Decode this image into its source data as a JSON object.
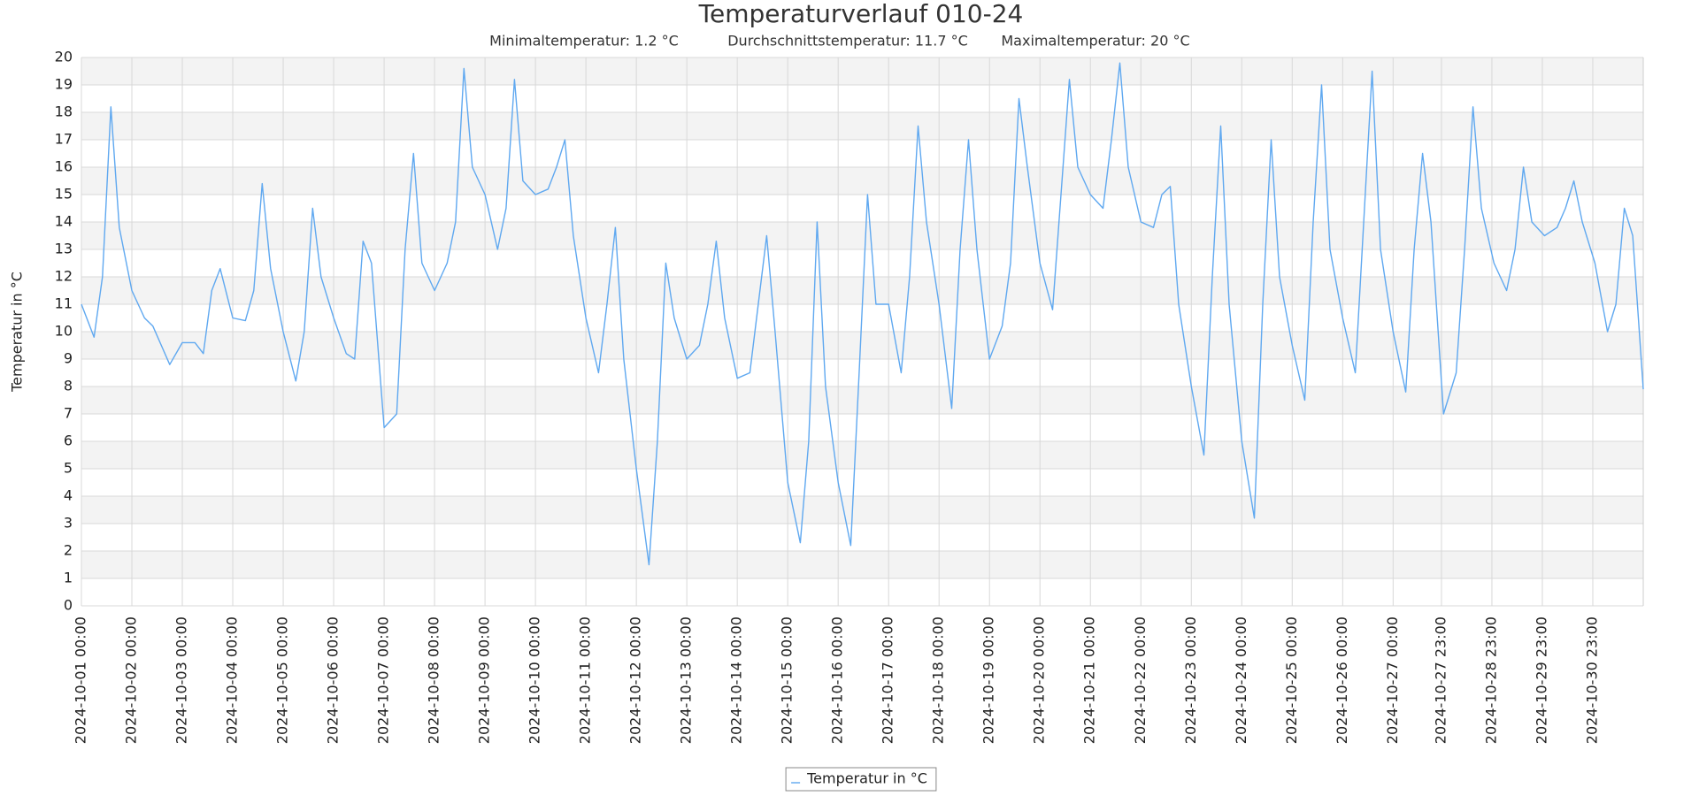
{
  "chart_data": {
    "type": "line",
    "title": "Temperaturverlauf 010-24",
    "subtitle": [
      "Minimaltemperatur: 1.2 °C",
      "Durchschnittstemperatur: 11.7 °C",
      "Maximaltemperatur: 20 °C"
    ],
    "y_label": "Temperatur in °C",
    "x": [
      "2024-10-01 00:00",
      "2024-10-01 06:00",
      "2024-10-01 10:00",
      "2024-10-01 14:00",
      "2024-10-01 18:00",
      "2024-10-02 00:00",
      "2024-10-02 06:00",
      "2024-10-02 10:00",
      "2024-10-02 14:00",
      "2024-10-02 18:00",
      "2024-10-03 00:00",
      "2024-10-03 06:00",
      "2024-10-03 10:00",
      "2024-10-03 14:00",
      "2024-10-03 18:00",
      "2024-10-04 00:00",
      "2024-10-04 06:00",
      "2024-10-04 10:00",
      "2024-10-04 14:00",
      "2024-10-04 18:00",
      "2024-10-05 00:00",
      "2024-10-05 06:00",
      "2024-10-05 10:00",
      "2024-10-05 14:00",
      "2024-10-05 18:00",
      "2024-10-06 00:00",
      "2024-10-06 06:00",
      "2024-10-06 10:00",
      "2024-10-06 14:00",
      "2024-10-06 18:00",
      "2024-10-07 00:00",
      "2024-10-07 06:00",
      "2024-10-07 10:00",
      "2024-10-07 14:00",
      "2024-10-07 18:00",
      "2024-10-08 00:00",
      "2024-10-08 06:00",
      "2024-10-08 10:00",
      "2024-10-08 14:00",
      "2024-10-08 18:00",
      "2024-10-09 00:00",
      "2024-10-09 06:00",
      "2024-10-09 10:00",
      "2024-10-09 14:00",
      "2024-10-09 18:00",
      "2024-10-10 00:00",
      "2024-10-10 06:00",
      "2024-10-10 10:00",
      "2024-10-10 14:00",
      "2024-10-10 18:00",
      "2024-10-11 00:00",
      "2024-10-11 06:00",
      "2024-10-11 10:00",
      "2024-10-11 14:00",
      "2024-10-11 18:00",
      "2024-10-12 00:00",
      "2024-10-12 06:00",
      "2024-10-12 10:00",
      "2024-10-12 14:00",
      "2024-10-12 18:00",
      "2024-10-13 00:00",
      "2024-10-13 06:00",
      "2024-10-13 10:00",
      "2024-10-13 14:00",
      "2024-10-13 18:00",
      "2024-10-14 00:00",
      "2024-10-14 06:00",
      "2024-10-14 10:00",
      "2024-10-14 14:00",
      "2024-10-14 18:00",
      "2024-10-15 00:00",
      "2024-10-15 06:00",
      "2024-10-15 10:00",
      "2024-10-15 14:00",
      "2024-10-15 18:00",
      "2024-10-16 00:00",
      "2024-10-16 06:00",
      "2024-10-16 10:00",
      "2024-10-16 14:00",
      "2024-10-16 18:00",
      "2024-10-17 00:00",
      "2024-10-17 06:00",
      "2024-10-17 10:00",
      "2024-10-17 14:00",
      "2024-10-17 18:00",
      "2024-10-18 00:00",
      "2024-10-18 06:00",
      "2024-10-18 10:00",
      "2024-10-18 14:00",
      "2024-10-18 18:00",
      "2024-10-19 00:00",
      "2024-10-19 06:00",
      "2024-10-19 10:00",
      "2024-10-19 14:00",
      "2024-10-19 18:00",
      "2024-10-20 00:00",
      "2024-10-20 06:00",
      "2024-10-20 10:00",
      "2024-10-20 14:00",
      "2024-10-20 18:00",
      "2024-10-21 00:00",
      "2024-10-21 06:00",
      "2024-10-21 10:00",
      "2024-10-21 14:00",
      "2024-10-21 18:00",
      "2024-10-22 00:00",
      "2024-10-22 06:00",
      "2024-10-22 10:00",
      "2024-10-22 14:00",
      "2024-10-22 18:00",
      "2024-10-23 00:00",
      "2024-10-23 06:00",
      "2024-10-23 10:00",
      "2024-10-23 14:00",
      "2024-10-23 18:00",
      "2024-10-24 00:00",
      "2024-10-24 06:00",
      "2024-10-24 10:00",
      "2024-10-24 14:00",
      "2024-10-24 18:00",
      "2024-10-25 00:00",
      "2024-10-25 06:00",
      "2024-10-25 10:00",
      "2024-10-25 14:00",
      "2024-10-25 18:00",
      "2024-10-26 00:00",
      "2024-10-26 06:00",
      "2024-10-26 10:00",
      "2024-10-26 14:00",
      "2024-10-26 18:00",
      "2024-10-27 00:00",
      "2024-10-27 06:00",
      "2024-10-27 10:00",
      "2024-10-27 14:00",
      "2024-10-27 18:00",
      "2024-10-28 00:00",
      "2024-10-28 06:00",
      "2024-10-28 10:00",
      "2024-10-28 14:00",
      "2024-10-28 18:00",
      "2024-10-29 00:00",
      "2024-10-29 06:00",
      "2024-10-29 10:00",
      "2024-10-29 14:00",
      "2024-10-29 18:00",
      "2024-10-30 00:00",
      "2024-10-30 06:00",
      "2024-10-30 10:00",
      "2024-10-30 14:00",
      "2024-10-30 18:00",
      "2024-10-31 00:00",
      "2024-10-31 06:00",
      "2024-10-31 10:00",
      "2024-10-31 14:00",
      "2024-10-31 18:00",
      "2024-10-31 23:00"
    ],
    "series": [
      {
        "name": "Temperatur in °C",
        "color": "#5fa8f0",
        "values": [
          11,
          9.8,
          12,
          18.2,
          13.8,
          11.5,
          10.5,
          10.2,
          9.5,
          8.8,
          9.6,
          9.6,
          9.2,
          11.5,
          12.3,
          10.5,
          10.4,
          11.5,
          15.4,
          12.3,
          10,
          8.2,
          10,
          14.5,
          12,
          10.5,
          9.2,
          9,
          13.3,
          12.5,
          6.5,
          7,
          13,
          16.5,
          12.5,
          11.5,
          12.5,
          14,
          19.6,
          16,
          15,
          13,
          14.5,
          19.2,
          15.5,
          15,
          15.2,
          16,
          17,
          13.5,
          10.5,
          8.5,
          11,
          13.8,
          9,
          5,
          1.5,
          6,
          12.5,
          10.5,
          9,
          9.5,
          11,
          13.3,
          10.5,
          8.3,
          8.5,
          11,
          13.5,
          10,
          4.5,
          2.3,
          6,
          14,
          8,
          4.5,
          2.2,
          8.5,
          15,
          11,
          11,
          8.5,
          12,
          17.5,
          14,
          11,
          7.2,
          13,
          17,
          13,
          9,
          10.2,
          12.5,
          18.5,
          16,
          12.5,
          10.8,
          15,
          19.2,
          16,
          15,
          14.5,
          17,
          19.8,
          16,
          14,
          13.8,
          15,
          15.3,
          11,
          8,
          5.5,
          12,
          17.5,
          11,
          6,
          3.2,
          11,
          17,
          12,
          9.5,
          7.5,
          14,
          19,
          13,
          10.5,
          8.5,
          14,
          19.5,
          13,
          10,
          7.8,
          13,
          16.5,
          14,
          7,
          8.5,
          13,
          18.2,
          14.5,
          12.5,
          11.5,
          13,
          16,
          14,
          13.5,
          13.8,
          14.5,
          15.5,
          14,
          12.5,
          10,
          11,
          14.5,
          13.5,
          7.9
        ]
      }
    ],
    "xlim": [
      "2024-10-01 00:00",
      "2024-10-31 23:00"
    ],
    "xticks": [
      "2024-10-01 00:00",
      "2024-10-02 00:00",
      "2024-10-03 00:00",
      "2024-10-04 00:00",
      "2024-10-05 00:00",
      "2024-10-06 00:00",
      "2024-10-07 00:00",
      "2024-10-08 00:00",
      "2024-10-09 00:00",
      "2024-10-10 00:00",
      "2024-10-11 00:00",
      "2024-10-12 00:00",
      "2024-10-13 00:00",
      "2024-10-14 00:00",
      "2024-10-15 00:00",
      "2024-10-16 00:00",
      "2024-10-17 00:00",
      "2024-10-18 00:00",
      "2024-10-19 00:00",
      "2024-10-20 00:00",
      "2024-10-21 00:00",
      "2024-10-22 00:00",
      "2024-10-23 00:00",
      "2024-10-24 00:00",
      "2024-10-25 00:00",
      "2024-10-26 00:00",
      "2024-10-27 00:00",
      "2024-10-27 23:00",
      "2024-10-28 23:00",
      "2024-10-29 23:00",
      "2024-10-30 23:00"
    ],
    "ylim": [
      0,
      20
    ],
    "yticks": [
      0,
      1,
      2,
      3,
      4,
      5,
      6,
      7,
      8,
      9,
      10,
      11,
      12,
      13,
      14,
      15,
      16,
      17,
      18,
      19,
      20
    ],
    "grid": true,
    "legend": "bottom"
  }
}
